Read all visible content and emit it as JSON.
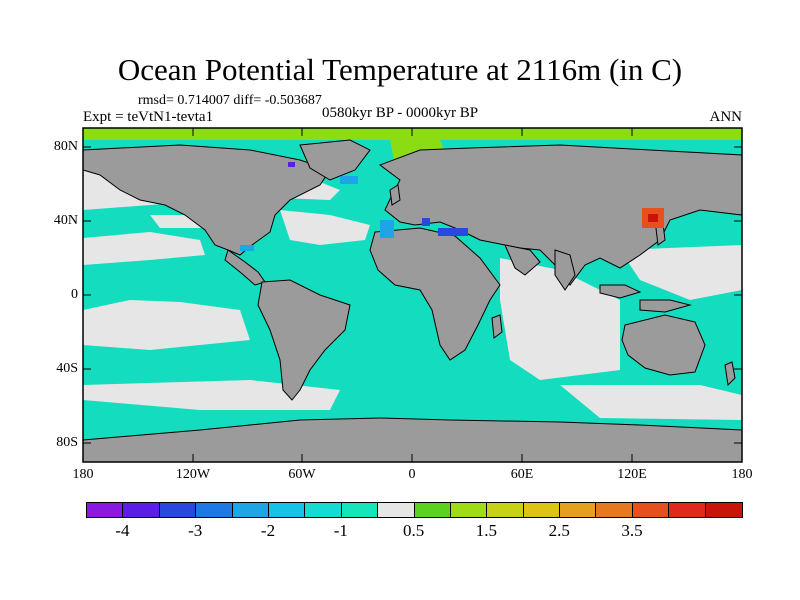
{
  "title": "Ocean Potential Temperature at 2116m (in C)",
  "stats": "rmsd= 0.714007 diff= -0.503687",
  "expt": "Expt = teVtN1-tevta1",
  "period": "0580kyr BP - 0000kyr BP",
  "season": "ANN",
  "lat_labels": [
    "80N",
    "40N",
    "0",
    "40S",
    "80S"
  ],
  "lon_labels": [
    "180",
    "120W",
    "60W",
    "0",
    "60E",
    "120E",
    "180"
  ],
  "colorbar": {
    "colors": [
      "#8b1ae0",
      "#5a1ee6",
      "#2848e0",
      "#1e78e6",
      "#1ea5e6",
      "#14c3e6",
      "#14dcd2",
      "#14e6b9",
      "#e6e6e6",
      "#5ad21e",
      "#a0dc14",
      "#c8d214",
      "#dcc314",
      "#e6a01e",
      "#e6781e",
      "#e6501e",
      "#e0281e",
      "#c8140a"
    ],
    "labels": [
      "-4",
      "-3",
      "-2",
      "-1",
      "0.5",
      "1.5",
      "2.5",
      "3.5"
    ]
  },
  "colors": {
    "land": "#9b9b9b",
    "ocean_main": "#14e6b9",
    "ocean_warm": "#e6e6e6",
    "arctic": "#8cdc14"
  }
}
